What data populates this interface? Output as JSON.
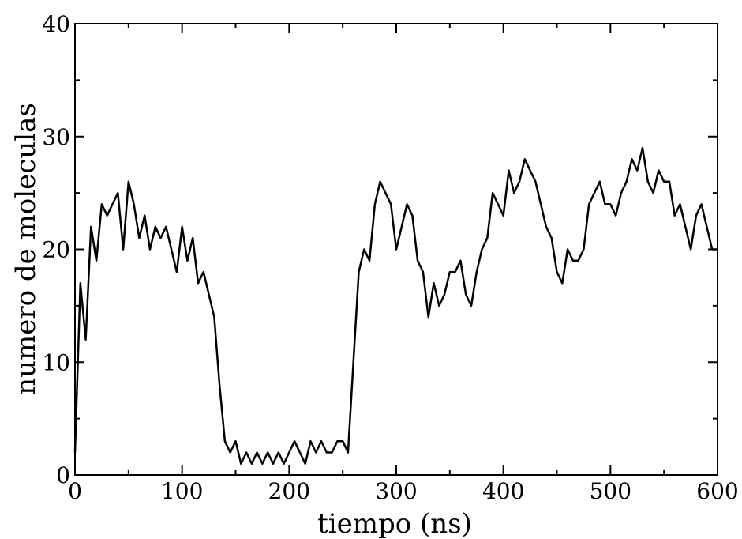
{
  "chart_data": {
    "type": "line",
    "title": "",
    "xlabel": "tiempo (ns)",
    "ylabel": "numero de moleculas",
    "xlim": [
      0,
      600
    ],
    "ylim": [
      0,
      40
    ],
    "xticks": [
      "0",
      "100",
      "200",
      "300",
      "400",
      "500",
      "600"
    ],
    "yticks": [
      "0",
      "10",
      "20",
      "30",
      "40"
    ],
    "grid": false,
    "legend": "none",
    "line_color": "#000000",
    "series": [
      {
        "x": [
          0,
          5,
          10,
          15,
          20,
          25,
          30,
          35,
          40,
          45,
          50,
          55,
          60,
          65,
          70,
          75,
          80,
          85,
          90,
          95,
          100,
          105,
          110,
          115,
          120,
          125,
          130,
          135,
          140,
          145,
          150,
          155,
          160,
          165,
          170,
          175,
          180,
          185,
          190,
          195,
          200,
          205,
          210,
          215,
          220,
          225,
          230,
          235,
          240,
          245,
          250,
          255,
          260,
          265,
          270,
          275,
          280,
          285,
          290,
          295,
          300,
          305,
          310,
          315,
          320,
          325,
          330,
          335,
          340,
          345,
          350,
          355,
          360,
          365,
          370,
          375,
          380,
          385,
          390,
          395,
          400,
          405,
          410,
          415,
          420,
          425,
          430,
          435,
          440,
          445,
          450,
          455,
          460,
          465,
          470,
          475,
          480,
          485,
          490,
          495,
          500,
          505,
          510,
          515,
          520,
          525,
          530,
          535,
          540,
          545,
          550,
          555,
          560,
          565,
          570,
          575,
          580,
          585,
          590,
          595,
          600
        ],
        "y": [
          2,
          17,
          12,
          22,
          19,
          24,
          23,
          24,
          25,
          20,
          26,
          24,
          21,
          23,
          20,
          22,
          21,
          22,
          20,
          18,
          22,
          19,
          21,
          17,
          18,
          16,
          14,
          8,
          3,
          2,
          3,
          1,
          2,
          1,
          2,
          1,
          2,
          1,
          2,
          1,
          2,
          3,
          2,
          1,
          3,
          2,
          3,
          2,
          2,
          3,
          3,
          2,
          10,
          18,
          20,
          19,
          24,
          26,
          25,
          24,
          20,
          22,
          24,
          23,
          19,
          18,
          14,
          17,
          15,
          16,
          18,
          18,
          19,
          16,
          15,
          18,
          20,
          21,
          25,
          24,
          23,
          27,
          25,
          26,
          28,
          27,
          26,
          24,
          22,
          21,
          18,
          17,
          20,
          19,
          19,
          20,
          24,
          25,
          26,
          24,
          24,
          23,
          25,
          26,
          28,
          27,
          29,
          26,
          25,
          27,
          26,
          26,
          23,
          24,
          22,
          20,
          23,
          24,
          22,
          20,
          20
        ]
      }
    ]
  }
}
